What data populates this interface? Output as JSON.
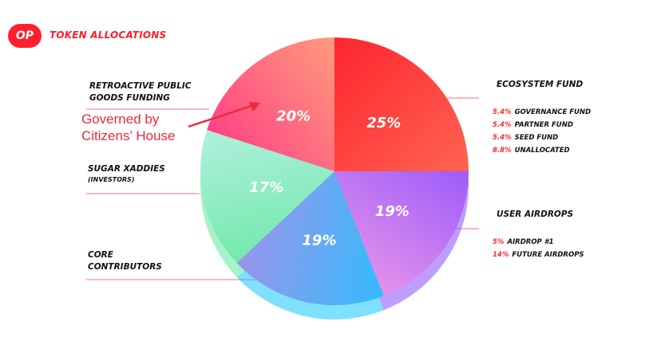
{
  "header": {
    "logo_text": "OP",
    "title": "TOKEN ALLOCATIONS",
    "brand_color": "#ff1f2d"
  },
  "annotation": {
    "line1": "Governed by",
    "line2": "Citizens’ House",
    "color": "#f0283c"
  },
  "labels": {
    "retro": [
      "RETROACTIVE PUBLIC",
      "GOODS FUNDING"
    ],
    "sugar": [
      "SUGAR XADDIES",
      "(INVESTORS)"
    ],
    "core": [
      "CORE",
      "CONTRIBUTORS"
    ],
    "ecosystem": "ECOSYSTEM FUND",
    "airdrops": "USER AIRDROPS"
  },
  "ecosystem_breakdown": [
    {
      "pct": "5.4%",
      "label": "GOVERNANCE FUND"
    },
    {
      "pct": "5.4%",
      "label": "PARTNER FUND"
    },
    {
      "pct": "5.4%",
      "label": "SEED FUND"
    },
    {
      "pct": "8.8%",
      "label": "UNALLOCATED"
    }
  ],
  "airdrop_breakdown": [
    {
      "pct": "5%",
      "label": "AIRDROP #1"
    },
    {
      "pct": "14%",
      "label": "FUTURE AIRDROPS"
    }
  ],
  "chart_data": {
    "type": "pie",
    "title": "TOKEN ALLOCATIONS",
    "slices": [
      {
        "name": "ECOSYSTEM FUND",
        "value": 25,
        "label": "25%",
        "colors": [
          "#ff1e2c",
          "#ff6a55"
        ]
      },
      {
        "name": "USER AIRDROPS",
        "value": 19,
        "label": "19%",
        "colors": [
          "#8a4dff",
          "#f6a0e6"
        ]
      },
      {
        "name": "CORE CONTRIBUTORS",
        "value": 19,
        "label": "19%",
        "colors": [
          "#18c6ff",
          "#b58ae8"
        ]
      },
      {
        "name": "SUGAR XADDIES (INVESTORS)",
        "value": 17,
        "label": "17%",
        "colors": [
          "#5ee79a",
          "#c6f2f0"
        ]
      },
      {
        "name": "RETROACTIVE PUBLIC GOODS FUNDING",
        "value": 20,
        "label": "20%",
        "colors": [
          "#ff2e86",
          "#ffb07a"
        ]
      }
    ],
    "sub_breakdown": {
      "ECOSYSTEM FUND": [
        {
          "name": "GOVERNANCE FUND",
          "value": 5.4
        },
        {
          "name": "PARTNER FUND",
          "value": 5.4
        },
        {
          "name": "SEED FUND",
          "value": 5.4
        },
        {
          "name": "UNALLOCATED",
          "value": 8.8
        }
      ],
      "USER AIRDROPS": [
        {
          "name": "AIRDROP #1",
          "value": 5
        },
        {
          "name": "FUTURE AIRDROPS",
          "value": 14
        }
      ]
    }
  }
}
